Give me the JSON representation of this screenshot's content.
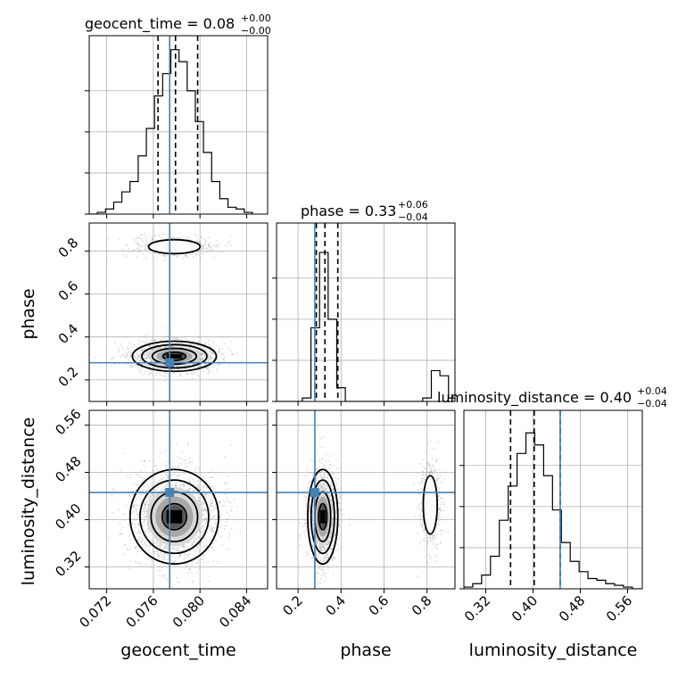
{
  "colors": {
    "truth": "#4682b4",
    "hist": "#000000",
    "grid": "#b0b0b0",
    "points": "#9a9a9a"
  },
  "chart_data": [
    {
      "panel": "geocent_time-hist",
      "type": "histogram",
      "title": {
        "prefix": "geocent_time = 0.08",
        "plus": "+0.00",
        "minus": "−0.00"
      },
      "xlim": [
        0.0705,
        0.0858
      ],
      "x_ticks": [
        0.072,
        0.076,
        0.08,
        0.084
      ],
      "quantiles": [
        0.0764,
        0.0779,
        0.0798
      ],
      "truth": 0.0774,
      "bin_edges": [
        0.0705,
        0.0712,
        0.0719,
        0.0726,
        0.0733,
        0.074,
        0.0747,
        0.0754,
        0.0761,
        0.0768,
        0.0775,
        0.0782,
        0.0789,
        0.0796,
        0.0803,
        0.081,
        0.0817,
        0.0824,
        0.0831,
        0.0838,
        0.0845
      ],
      "counts": [
        0.0,
        0.01,
        0.03,
        0.07,
        0.13,
        0.19,
        0.34,
        0.5,
        0.69,
        0.82,
        0.96,
        0.89,
        0.72,
        0.54,
        0.36,
        0.19,
        0.09,
        0.04,
        0.03,
        0.01
      ]
    },
    {
      "panel": "phase-hist",
      "type": "histogram",
      "title": {
        "prefix": "phase = 0.33",
        "plus": "+0.06",
        "minus": "−0.04"
      },
      "xlim": [
        0.1,
        0.93
      ],
      "x_ticks": [
        0.2,
        0.4,
        0.6,
        0.8
      ],
      "quantiles": [
        0.285,
        0.325,
        0.385
      ],
      "truth": 0.278,
      "bin_edges": [
        0.1,
        0.14,
        0.18,
        0.22,
        0.26,
        0.3,
        0.34,
        0.38,
        0.42,
        0.46,
        0.5,
        0.54,
        0.58,
        0.62,
        0.66,
        0.7,
        0.74,
        0.78,
        0.82,
        0.86,
        0.9,
        0.93
      ],
      "counts": [
        0.0,
        0.0,
        0.0,
        0.02,
        0.43,
        0.87,
        0.48,
        0.08,
        0.0,
        0.0,
        0.0,
        0.0,
        0.0,
        0.0,
        0.0,
        0.0,
        0.0,
        0.02,
        0.18,
        0.15,
        0.02
      ]
    },
    {
      "panel": "luminosity_distance-hist",
      "type": "histogram",
      "title": {
        "prefix": "luminosity_distance = 0.40",
        "plus": "+0.04",
        "minus": "−0.04"
      },
      "xlim": [
        0.283,
        0.585
      ],
      "x_ticks": [
        0.32,
        0.4,
        0.48,
        0.56
      ],
      "quantiles": [
        0.362,
        0.402,
        0.446
      ],
      "truth": 0.446,
      "bin_edges": [
        0.283,
        0.298,
        0.313,
        0.328,
        0.343,
        0.358,
        0.373,
        0.388,
        0.403,
        0.418,
        0.433,
        0.448,
        0.463,
        0.478,
        0.493,
        0.508,
        0.523,
        0.538,
        0.553,
        0.568,
        0.583
      ],
      "counts": [
        0.01,
        0.03,
        0.08,
        0.19,
        0.4,
        0.6,
        0.79,
        0.91,
        0.84,
        0.66,
        0.46,
        0.27,
        0.16,
        0.1,
        0.06,
        0.05,
        0.03,
        0.02,
        0.01,
        0.0
      ]
    },
    {
      "panel": "phase-vs-geocent_time",
      "type": "scatter",
      "xlim": [
        0.0705,
        0.0858
      ],
      "ylim": [
        0.1,
        0.93
      ],
      "x_ticks": [
        0.072,
        0.076,
        0.08,
        0.084
      ],
      "y_ticks": [
        0.2,
        0.4,
        0.6,
        0.8
      ],
      "ylabel": "phase",
      "truth": [
        0.0774,
        0.28
      ],
      "clusters": [
        {
          "center": [
            0.0778,
            0.31
          ],
          "std": [
            0.0018,
            0.035
          ],
          "n": 1500
        },
        {
          "center": [
            0.0778,
            0.82
          ],
          "std": [
            0.0017,
            0.025
          ],
          "n": 500
        }
      ]
    },
    {
      "panel": "luminosity_distance-vs-geocent_time",
      "type": "scatter",
      "xlim": [
        0.0705,
        0.0858
      ],
      "ylim": [
        0.283,
        0.585
      ],
      "x_ticks": [
        0.072,
        0.076,
        0.08,
        0.084
      ],
      "y_ticks": [
        0.32,
        0.4,
        0.48,
        0.56
      ],
      "xlabel": "geocent_time",
      "ylabel": "luminosity_distance",
      "truth": [
        0.0774,
        0.446
      ],
      "clusters": [
        {
          "center": [
            0.0778,
            0.405
          ],
          "std": [
            0.0019,
            0.04
          ],
          "n": 1800
        }
      ]
    },
    {
      "panel": "luminosity_distance-vs-phase",
      "type": "scatter",
      "xlim": [
        0.1,
        0.93
      ],
      "ylim": [
        0.283,
        0.585
      ],
      "x_ticks": [
        0.2,
        0.4,
        0.6,
        0.8
      ],
      "y_ticks": [
        0.32,
        0.4,
        0.48,
        0.56
      ],
      "xlabel": "phase",
      "truth": [
        0.278,
        0.446
      ],
      "clusters": [
        {
          "center": [
            0.315,
            0.405
          ],
          "std": [
            0.035,
            0.04
          ],
          "n": 1400
        },
        {
          "center": [
            0.815,
            0.425
          ],
          "std": [
            0.025,
            0.038
          ],
          "n": 500
        }
      ]
    }
  ],
  "labels": {
    "geocent_time": "geocent_time",
    "phase": "phase",
    "luminosity_distance": "luminosity_distance"
  }
}
